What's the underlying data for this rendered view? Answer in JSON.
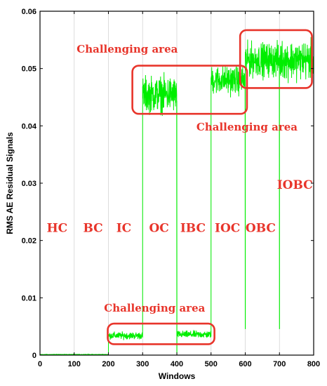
{
  "chart_data": {
    "type": "line",
    "title": "",
    "xlabel": "Windows",
    "ylabel": "RMS AE Residual Signals",
    "xlim": [
      0,
      800
    ],
    "ylim": [
      0,
      0.06
    ],
    "x_ticks": [
      "0",
      "100",
      "200",
      "300",
      "400",
      "500",
      "600",
      "700",
      "800"
    ],
    "y_ticks": [
      "0",
      "0.01",
      "0.02",
      "0.03",
      "0.04",
      "0.05",
      "0.06"
    ],
    "grid": "x-only",
    "line_color": "#00ee00",
    "annotation_color": "#e8352b",
    "series": [
      {
        "segments": [
          {
            "x_start": 0,
            "x_end": 200,
            "level": 0.0001,
            "noise": 2e-05
          },
          {
            "x_start": 200,
            "x_end": 300,
            "level": 0.0034,
            "noise": 0.0003
          },
          {
            "x_start": 300,
            "x_end": 400,
            "level": 0.0455,
            "noise": 0.0015
          },
          {
            "x_start": 400,
            "x_end": 500,
            "level": 0.0036,
            "noise": 0.0003
          },
          {
            "x_start": 500,
            "x_end": 600,
            "level": 0.048,
            "noise": 0.0012
          },
          {
            "x_start": 600,
            "x_end": 700,
            "level": 0.0515,
            "noise": 0.0014
          },
          {
            "x_start": 700,
            "x_end": 800,
            "level": 0.0515,
            "noise": 0.0016
          }
        ],
        "dips": [
          {
            "x": 400,
            "y": 0.0
          },
          {
            "x": 600,
            "y": 0.0046
          },
          {
            "x": 700,
            "y": 0.0046
          }
        ]
      }
    ],
    "region_labels": [
      {
        "text": "HC",
        "x": 50,
        "y": 0.0215
      },
      {
        "text": "BC",
        "x": 155,
        "y": 0.0215
      },
      {
        "text": "IC",
        "x": 245,
        "y": 0.0215
      },
      {
        "text": "OC",
        "x": 348,
        "y": 0.0215
      },
      {
        "text": "IBC",
        "x": 447,
        "y": 0.0215
      },
      {
        "text": "IOC",
        "x": 548,
        "y": 0.0215
      },
      {
        "text": "OBC",
        "x": 645,
        "y": 0.0215
      },
      {
        "text": "IOBC",
        "x": 745,
        "y": 0.029
      }
    ],
    "annotations": [
      {
        "text": "Challenging area",
        "x": 255,
        "y": 0.0528
      },
      {
        "text": "Challenging area",
        "x": 605,
        "y": 0.0392
      },
      {
        "text": "Challenging area",
        "x": 335,
        "y": 0.0076
      }
    ],
    "highlight_boxes": [
      {
        "x0": 270,
        "x1": 605,
        "y0": 0.0421,
        "y1": 0.0505
      },
      {
        "x0": 585,
        "x1": 795,
        "y0": 0.0466,
        "y1": 0.0567
      },
      {
        "x0": 198,
        "x1": 510,
        "y0": 0.0019,
        "y1": 0.0055
      }
    ]
  }
}
